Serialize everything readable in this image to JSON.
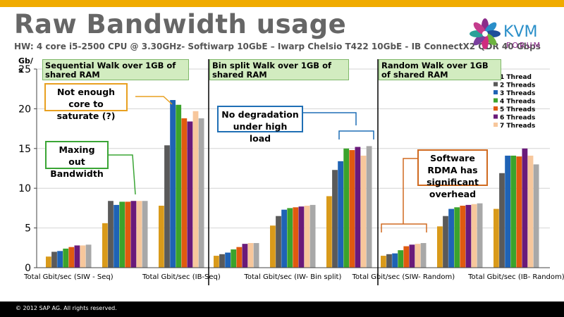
{
  "slide": {
    "title": "Raw Bandwidth usage",
    "subtitle": "HW: 4 core i5-2500 CPU @ 3.30GHz- Softiwarp 10GbE – Iwarp Chelsio T422 10GbE  -  IB ConnectX2 QDR 40 Gbps",
    "logo_text": "KVM",
    "logo_subtext": "FORUM",
    "copyright": "©  2012 SAP AG. All rights reserved.",
    "y_unit_label": "Gb/s"
  },
  "colors": {
    "accent_bar": "#f0ab00",
    "footer": "#000000",
    "series": [
      "#d99a1a",
      "#5a5a5a",
      "#1f63b5",
      "#3ba32c",
      "#e05a0f",
      "#6a1a7a",
      "#f7c79c",
      "#a8a8a8"
    ]
  },
  "panels": [
    {
      "label": "Sequential Walk over 1GB of shared RAM"
    },
    {
      "label": "Bin split  Walk over 1GB of shared RAM"
    },
    {
      "label": "Random Walk over 1GB of shared RAM"
    }
  ],
  "callouts": {
    "not_enough_core": "Not enough core to saturate (?)",
    "maxing_out": "Maxing out Bandwidth",
    "no_degradation": "No degradation under high load",
    "software_rdma": "Software RDMA has significant overhead"
  },
  "chart_data": {
    "type": "bar",
    "ylim": [
      0,
      25
    ],
    "yticks": [
      0,
      5,
      10,
      15,
      20,
      25
    ],
    "categories": [
      "Total Gbit/sec (SIW - Seq)",
      "",
      "Total Gbit/sec (IB-Seq)",
      "",
      "Total Gbit/sec  (IW- Bin split)",
      "",
      "Total Gbit/sec (SIW- Random)",
      "",
      "Total Gbit/sec (IB- Random)"
    ],
    "series": [
      {
        "name": "",
        "values": [
          1.4,
          5.6,
          7.8,
          1.5,
          5.3,
          9.0,
          1.5,
          5.2,
          7.4
        ]
      },
      {
        "name": "2 Threads",
        "values": [
          2.0,
          8.4,
          15.4,
          1.7,
          6.5,
          12.3,
          1.7,
          6.5,
          11.9
        ]
      },
      {
        "name": "3 Threads",
        "values": [
          2.1,
          7.9,
          21.1,
          1.9,
          7.3,
          13.4,
          1.8,
          7.4,
          14.1
        ]
      },
      {
        "name": "4 Threads",
        "values": [
          2.4,
          8.3,
          20.5,
          2.3,
          7.5,
          15.0,
          2.2,
          7.6,
          14.1
        ]
      },
      {
        "name": "5 Threads",
        "values": [
          2.6,
          8.3,
          18.8,
          2.6,
          7.6,
          14.8,
          2.7,
          7.8,
          14.0
        ]
      },
      {
        "name": "6 Threads",
        "values": [
          2.8,
          8.4,
          18.4,
          3.0,
          7.7,
          15.2,
          2.9,
          7.9,
          15.0
        ]
      },
      {
        "name": "7 Threads",
        "values": [
          2.8,
          8.4,
          19.7,
          3.1,
          7.8,
          14.1,
          3.0,
          8.0,
          14.1
        ]
      },
      {
        "name": "",
        "values": [
          2.9,
          8.4,
          18.8,
          3.1,
          7.9,
          15.3,
          3.1,
          8.1,
          13.0
        ]
      }
    ],
    "legend": [
      "1 Thread",
      "2 Threads",
      "3 Threads",
      "4 Threads",
      "5 Threads",
      "6 Threads",
      "7 Threads"
    ]
  }
}
